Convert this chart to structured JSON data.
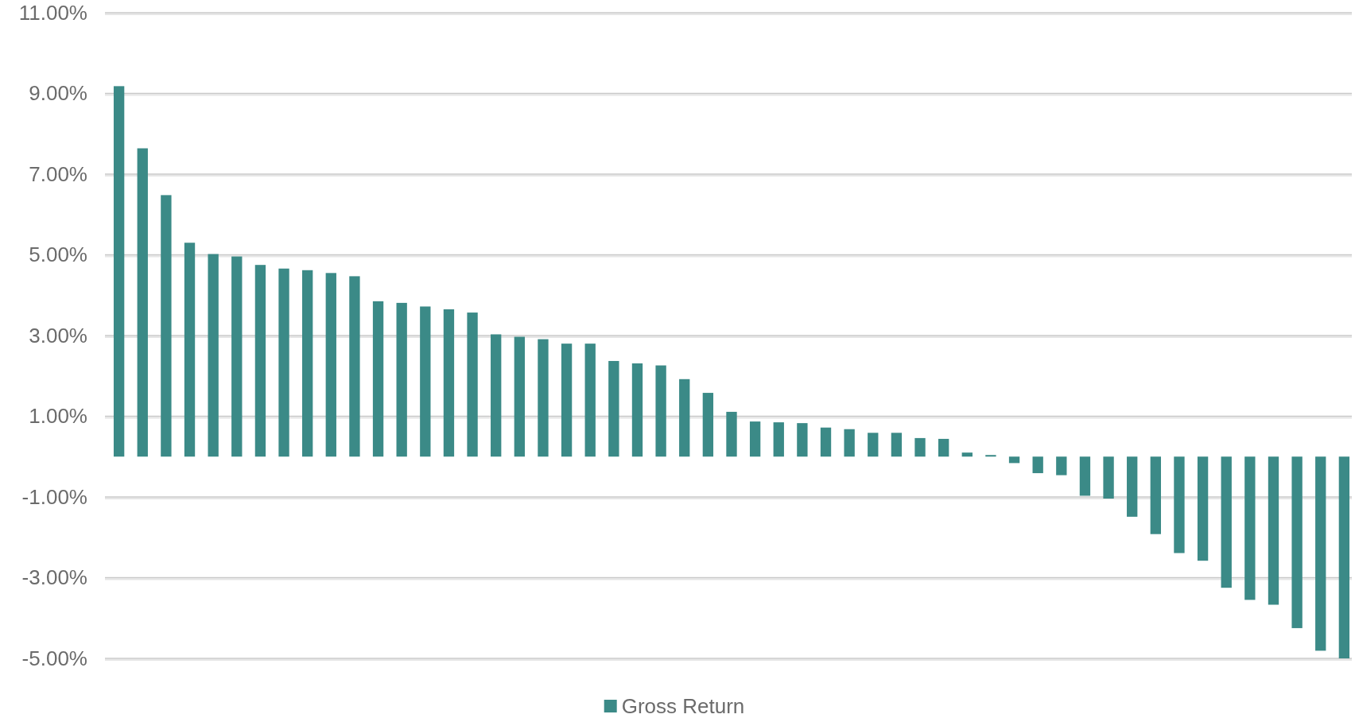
{
  "chart_data": {
    "type": "bar",
    "categories": [
      null,
      null,
      null,
      null,
      null,
      null,
      null,
      null,
      null,
      null,
      null,
      null,
      null,
      null,
      null,
      null,
      null,
      null,
      null,
      null,
      null,
      null,
      null,
      null,
      null,
      null,
      null,
      null,
      null,
      null,
      null,
      null,
      null,
      null,
      null,
      null,
      null,
      null,
      null,
      null,
      null,
      null,
      null,
      null,
      null,
      null,
      null,
      null,
      null,
      null,
      null,
      null,
      null
    ],
    "series": [
      {
        "name": "Gross Return",
        "color": "#3b8a87",
        "values": [
          9.18,
          7.64,
          6.48,
          5.3,
          5.02,
          4.96,
          4.75,
          4.66,
          4.62,
          4.55,
          4.47,
          3.85,
          3.81,
          3.72,
          3.65,
          3.57,
          3.03,
          2.97,
          2.91,
          2.8,
          2.8,
          2.37,
          2.31,
          2.26,
          1.92,
          1.58,
          1.11,
          0.87,
          0.85,
          0.83,
          0.72,
          0.68,
          0.59,
          0.59,
          0.46,
          0.44,
          0.1,
          0.04,
          -0.16,
          -0.41,
          -0.46,
          -0.97,
          -1.04,
          -1.49,
          -1.92,
          -2.39,
          -2.58,
          -3.25,
          -3.55,
          -3.67,
          -4.25,
          -4.81,
          -5.0
        ]
      }
    ],
    "ylim": [
      -5,
      11
    ],
    "yticks": [
      {
        "value": 11,
        "label": "11.00%"
      },
      {
        "value": 9,
        "label": "9.00%"
      },
      {
        "value": 7,
        "label": "7.00%"
      },
      {
        "value": 5,
        "label": "5.00%"
      },
      {
        "value": 3,
        "label": "3.00%"
      },
      {
        "value": 1,
        "label": "1.00%"
      },
      {
        "value": -1,
        "label": "-1.00%"
      },
      {
        "value": -3,
        "label": "-3.00%"
      },
      {
        "value": -5,
        "label": "-5.00%"
      }
    ],
    "tick_labels": "y",
    "grid": "y",
    "legend": "bottom"
  }
}
